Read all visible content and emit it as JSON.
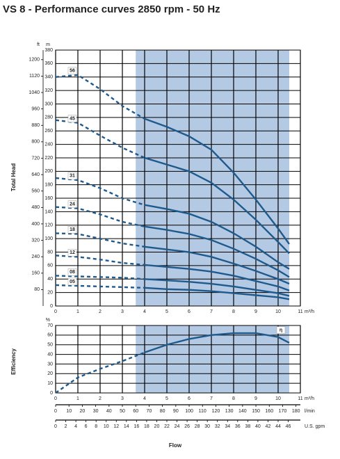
{
  "chart_data": [
    {
      "type": "line",
      "title": "VS 8 - Performance curves 2850 rpm - 50 Hz",
      "ylabel": "Total Head",
      "xunit": "m³/h",
      "yunit": "m",
      "y2unit": "ft",
      "color": "#1f5a8c",
      "shade_color": "#b4c9e3",
      "grid": true,
      "shaded_range": [
        3.6,
        10.5
      ],
      "xlim": [
        0,
        11
      ],
      "xticks": [
        0,
        1,
        2,
        3,
        4,
        5,
        6,
        7,
        8,
        9,
        10,
        11
      ],
      "ylim": [
        0,
        380
      ],
      "yticks": [
        0,
        20,
        40,
        60,
        80,
        100,
        120,
        140,
        160,
        180,
        200,
        220,
        240,
        260,
        280,
        300,
        320,
        340,
        360,
        380
      ],
      "y2lim": [
        0,
        1246.7
      ],
      "y2ticks": [
        80,
        160,
        240,
        320,
        400,
        480,
        560,
        640,
        720,
        800,
        880,
        960,
        1040,
        1120,
        1200
      ],
      "x": [
        0,
        1,
        2,
        3,
        4,
        5,
        6,
        7,
        8,
        9,
        10,
        10.5
      ],
      "series": [
        {
          "name": "56",
          "values": [
            340,
            343,
            322,
            297,
            278,
            266,
            252,
            232,
            198,
            158,
            115,
            92
          ]
        },
        {
          "name": "45",
          "values": [
            276,
            272,
            253,
            235,
            220,
            210,
            200,
            183,
            158,
            128,
            95,
            78
          ]
        },
        {
          "name": "31",
          "values": [
            190,
            187,
            175,
            160,
            150,
            144,
            137,
            125,
            108,
            88,
            65,
            55
          ]
        },
        {
          "name": "24",
          "values": [
            147,
            145,
            136,
            125,
            118,
            113,
            107,
            98,
            85,
            70,
            53,
            43
          ]
        },
        {
          "name": "18",
          "values": [
            108,
            107,
            100,
            93,
            88,
            84,
            80,
            73,
            63,
            52,
            40,
            33
          ]
        },
        {
          "name": "12",
          "values": [
            75,
            73,
            69,
            64,
            61,
            58,
            55,
            51,
            45,
            37,
            29,
            23
          ]
        },
        {
          "name": "08",
          "values": [
            45,
            44,
            43,
            42,
            40,
            38,
            36,
            33,
            29,
            24,
            19,
            15
          ]
        },
        {
          "name": "05",
          "values": [
            31,
            30,
            29,
            28,
            27,
            25,
            24,
            22,
            19,
            16,
            13,
            10
          ]
        }
      ]
    },
    {
      "type": "line",
      "ylabel": "Efficiency",
      "xlabel": "Flow",
      "xunit": "m³/h",
      "yunit": "%",
      "color": "#1f5a8c",
      "shade_color": "#b4c9e3",
      "grid": true,
      "shaded_range": [
        3.6,
        10.5
      ],
      "xlim": [
        0,
        11
      ],
      "xticks": [
        0,
        1,
        2,
        3,
        4,
        5,
        6,
        7,
        8,
        9,
        10,
        11
      ],
      "ylim": [
        0,
        70
      ],
      "yticks": [
        0,
        10,
        20,
        30,
        40,
        50,
        60,
        70
      ],
      "x": [
        0,
        1,
        2,
        3,
        4,
        5,
        6,
        7,
        8,
        9,
        10,
        10.5
      ],
      "series": [
        {
          "name": "η",
          "values": [
            0,
            16,
            25,
            33,
            42,
            50,
            56,
            60,
            62,
            62,
            58,
            52
          ]
        }
      ],
      "flow_axes": [
        {
          "unit": "l/min",
          "xlim": [
            0,
            183.3
          ],
          "xticks": [
            0,
            10,
            20,
            30,
            40,
            50,
            60,
            70,
            80,
            90,
            100,
            110,
            120,
            130,
            140,
            150,
            160,
            170,
            180
          ]
        },
        {
          "unit": "U.S. gpm",
          "xlim": [
            0,
            48.4
          ],
          "xticks": [
            0,
            2,
            4,
            6,
            8,
            10,
            12,
            14,
            16,
            18,
            20,
            22,
            24,
            26,
            28,
            30,
            32,
            34,
            36,
            38,
            40,
            42,
            44,
            46
          ]
        }
      ]
    }
  ]
}
